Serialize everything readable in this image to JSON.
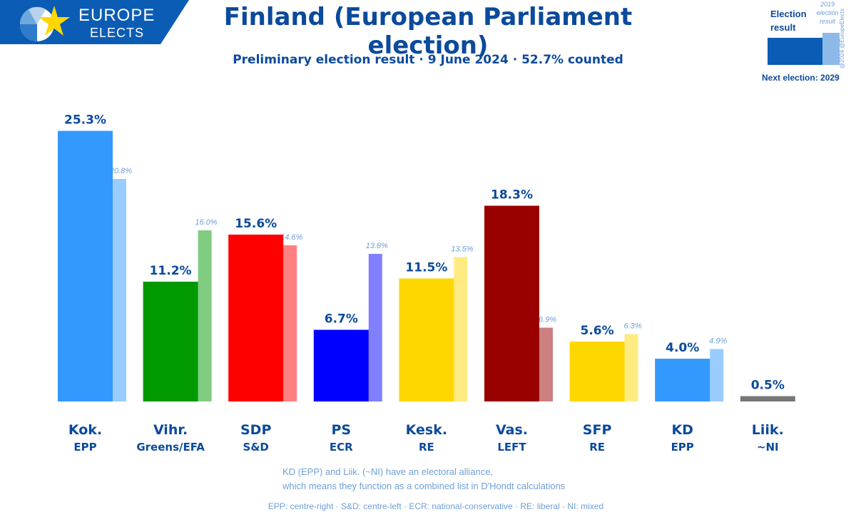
{
  "logo": {
    "line1": "EUROPE",
    "line2": "ELECTS"
  },
  "title": "Finland (European Parliament election)",
  "subtitle": "Preliminary election result · 9 June 2024 · 52.7% counted",
  "legend": {
    "current_label": "Election result",
    "previous_label": "2019 election result",
    "next_election": "Next election: 2029",
    "current_color": "#0b5cb5",
    "previous_color": "#8db9e8"
  },
  "copyright": "@2024 @EuropeElects",
  "chart_data": {
    "type": "bar",
    "ylim": [
      0,
      26
    ],
    "categories": [
      "Kok.",
      "Vihr.",
      "SDP",
      "PS",
      "Kesk.",
      "Vas.",
      "SFP",
      "KD",
      "Liik."
    ],
    "groups": [
      "EPP",
      "Greens/EFA",
      "S&D",
      "ECR",
      "RE",
      "LEFT",
      "RE",
      "EPP",
      "~NI"
    ],
    "series": [
      {
        "name": "Election result",
        "values": [
          25.3,
          11.2,
          15.6,
          6.7,
          11.5,
          18.3,
          5.6,
          4.0,
          0.5
        ],
        "labels": [
          "25.3%",
          "11.2%",
          "15.6%",
          "6.7%",
          "11.5%",
          "18.3%",
          "5.6%",
          "4.0%",
          "0.5%"
        ]
      },
      {
        "name": "2019 election result",
        "values": [
          20.8,
          16.0,
          14.6,
          13.8,
          13.5,
          6.9,
          6.3,
          4.9,
          null
        ],
        "labels": [
          "20.8%",
          "16.0%",
          "14.6%",
          "13.8%",
          "13.5%",
          "6.9%",
          "6.3%",
          "4.9%",
          null
        ]
      }
    ],
    "colors": [
      "#3399ff",
      "#009900",
      "#ff0000",
      "#0000ff",
      "#ffd700",
      "#990000",
      "#ffd700",
      "#3399ff",
      "#777777"
    ],
    "prev_colors": [
      "#99ccff",
      "#80cc80",
      "#ff8080",
      "#8080ff",
      "#ffeb80",
      "#cc8080",
      "#ffeb80",
      "#99ccff",
      "#bbbbbb"
    ]
  },
  "note": {
    "line1": "KD (EPP) and Liik. (~NI) have an electoral alliance,",
    "line2": "which means they function as a combined list in D'Hondt calculations"
  },
  "footer": "EPP: centre-right · S&D: centre-left · ECR: national-conservative · RE: liberal · NI: mixed"
}
